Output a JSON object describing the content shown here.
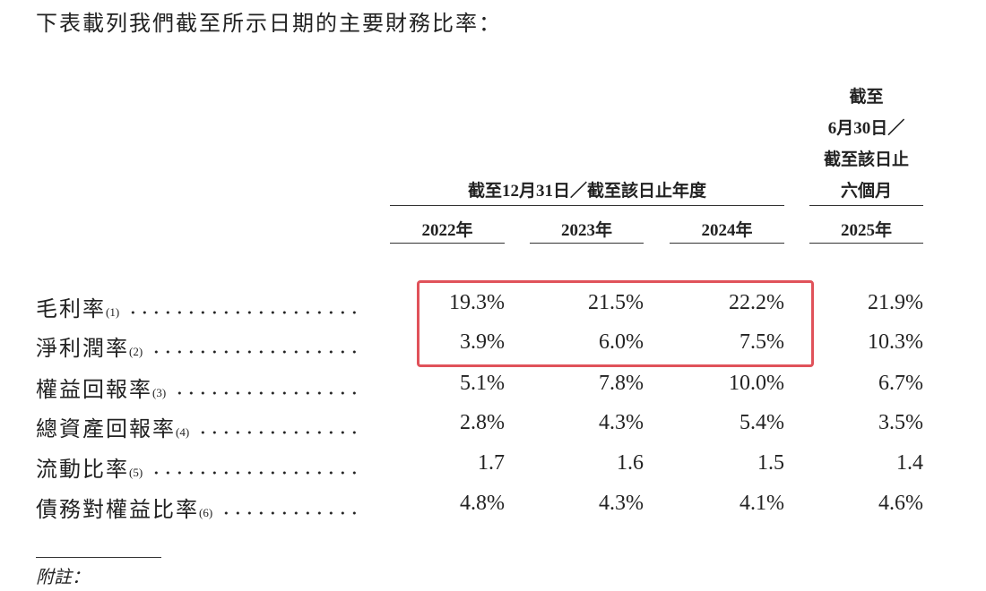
{
  "intro": "下表載列我們截至所示日期的主要財務比率：",
  "table": {
    "group_header": "截至12月31日／截至該日止年度",
    "last_header": [
      "截至",
      "6月30日／",
      "截至該日止",
      "六個月"
    ],
    "years": [
      "2022年",
      "2023年",
      "2024年",
      "2025年"
    ],
    "rows": [
      {
        "label": "毛利率",
        "note": "(1)",
        "values": [
          "19.3%",
          "21.5%",
          "22.2%",
          "21.9%"
        ]
      },
      {
        "label": "淨利潤率",
        "note": "(2)",
        "values": [
          "3.9%",
          "6.0%",
          "7.5%",
          "10.3%"
        ]
      },
      {
        "label": "權益回報率",
        "note": "(3)",
        "values": [
          "5.1%",
          "7.8%",
          "10.0%",
          "6.7%"
        ]
      },
      {
        "label": "總資產回報率",
        "note": "(4)",
        "values": [
          "2.8%",
          "4.3%",
          "5.4%",
          "3.5%"
        ]
      },
      {
        "label": "流動比率",
        "note": "(5)",
        "values": [
          "1.7",
          "1.6",
          "1.5",
          "1.4"
        ]
      },
      {
        "label": "債務對權益比率",
        "note": "(6)",
        "values": [
          "4.8%",
          "4.3%",
          "4.1%",
          "4.6%"
        ]
      }
    ]
  },
  "notes_heading": "附註："
}
